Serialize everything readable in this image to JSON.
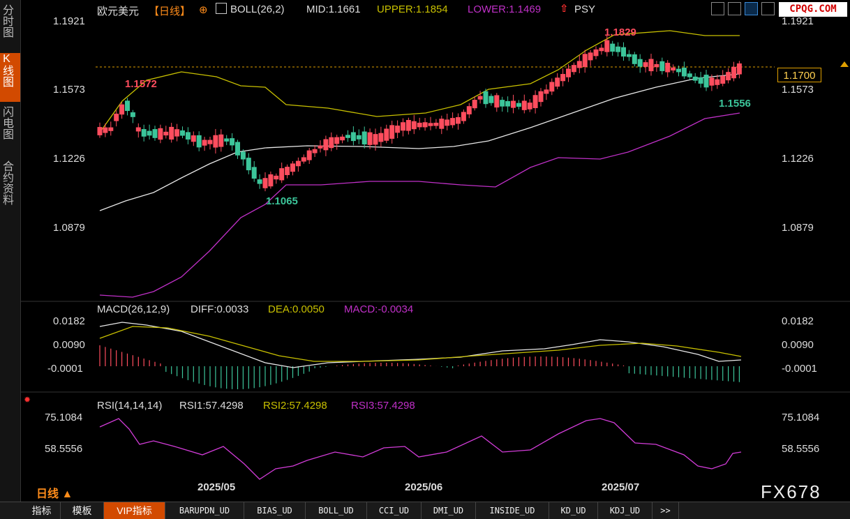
{
  "sidebar": {
    "tabs": [
      {
        "label": "分时图"
      },
      {
        "label": "K线图",
        "active": true
      },
      {
        "label": "闪电图"
      },
      {
        "label": "合约资料"
      }
    ]
  },
  "header": {
    "symbol": "欧元美元",
    "period": "【日线】",
    "boll_label": "BOLL(26,2)",
    "mid": "MID:1.1661",
    "upper": "UPPER:1.1854",
    "lower": "LOWER:1.1469",
    "psy": "PSY",
    "logo": "CPQG.COM"
  },
  "main_chart": {
    "y_ticks_left": [
      "1.1921",
      "1.1573",
      "1.1226",
      "1.0879"
    ],
    "y_ticks_right": [
      "1.1921",
      "1.1573",
      "1.1226",
      "1.0879"
    ],
    "current_price": "1.1700",
    "annotations": {
      "high1": "1.1572",
      "low1": "1.1065",
      "high2": "1.1829",
      "low2": "1.1556"
    },
    "colors": {
      "up": "#ff4d5e",
      "down": "#3cc59a",
      "upper": "#c8c000",
      "mid": "#e8e8e8",
      "lower": "#c030c8"
    }
  },
  "macd": {
    "label": "MACD(26,12,9)",
    "diff": "DIFF:0.0033",
    "dea": "DEA:0.0050",
    "macd": "MACD:-0.0034",
    "y_ticks": [
      "0.0182",
      "0.0090",
      "-0.0001"
    ]
  },
  "rsi": {
    "label": "RSI(14,14,14)",
    "rsi1": "RSI1:57.4298",
    "rsi2": "RSI2:57.4298",
    "rsi3": "RSI3:57.4298",
    "y_ticks": [
      "75.1084",
      "58.5556"
    ]
  },
  "x_axis": {
    "labels": [
      "2025/05",
      "2025/06",
      "2025/07"
    ]
  },
  "period_selector": "日线 ▲",
  "watermark": "FX678",
  "bottom_tabs": [
    "指标",
    "模板",
    "VIP指标",
    "BARUPDN_UD",
    "BIAS_UD",
    "BOLL_UD",
    "CCI_UD",
    "DMI_UD",
    "INSIDE_UD",
    "KD_UD",
    "KDJ_UD",
    ">>"
  ]
}
